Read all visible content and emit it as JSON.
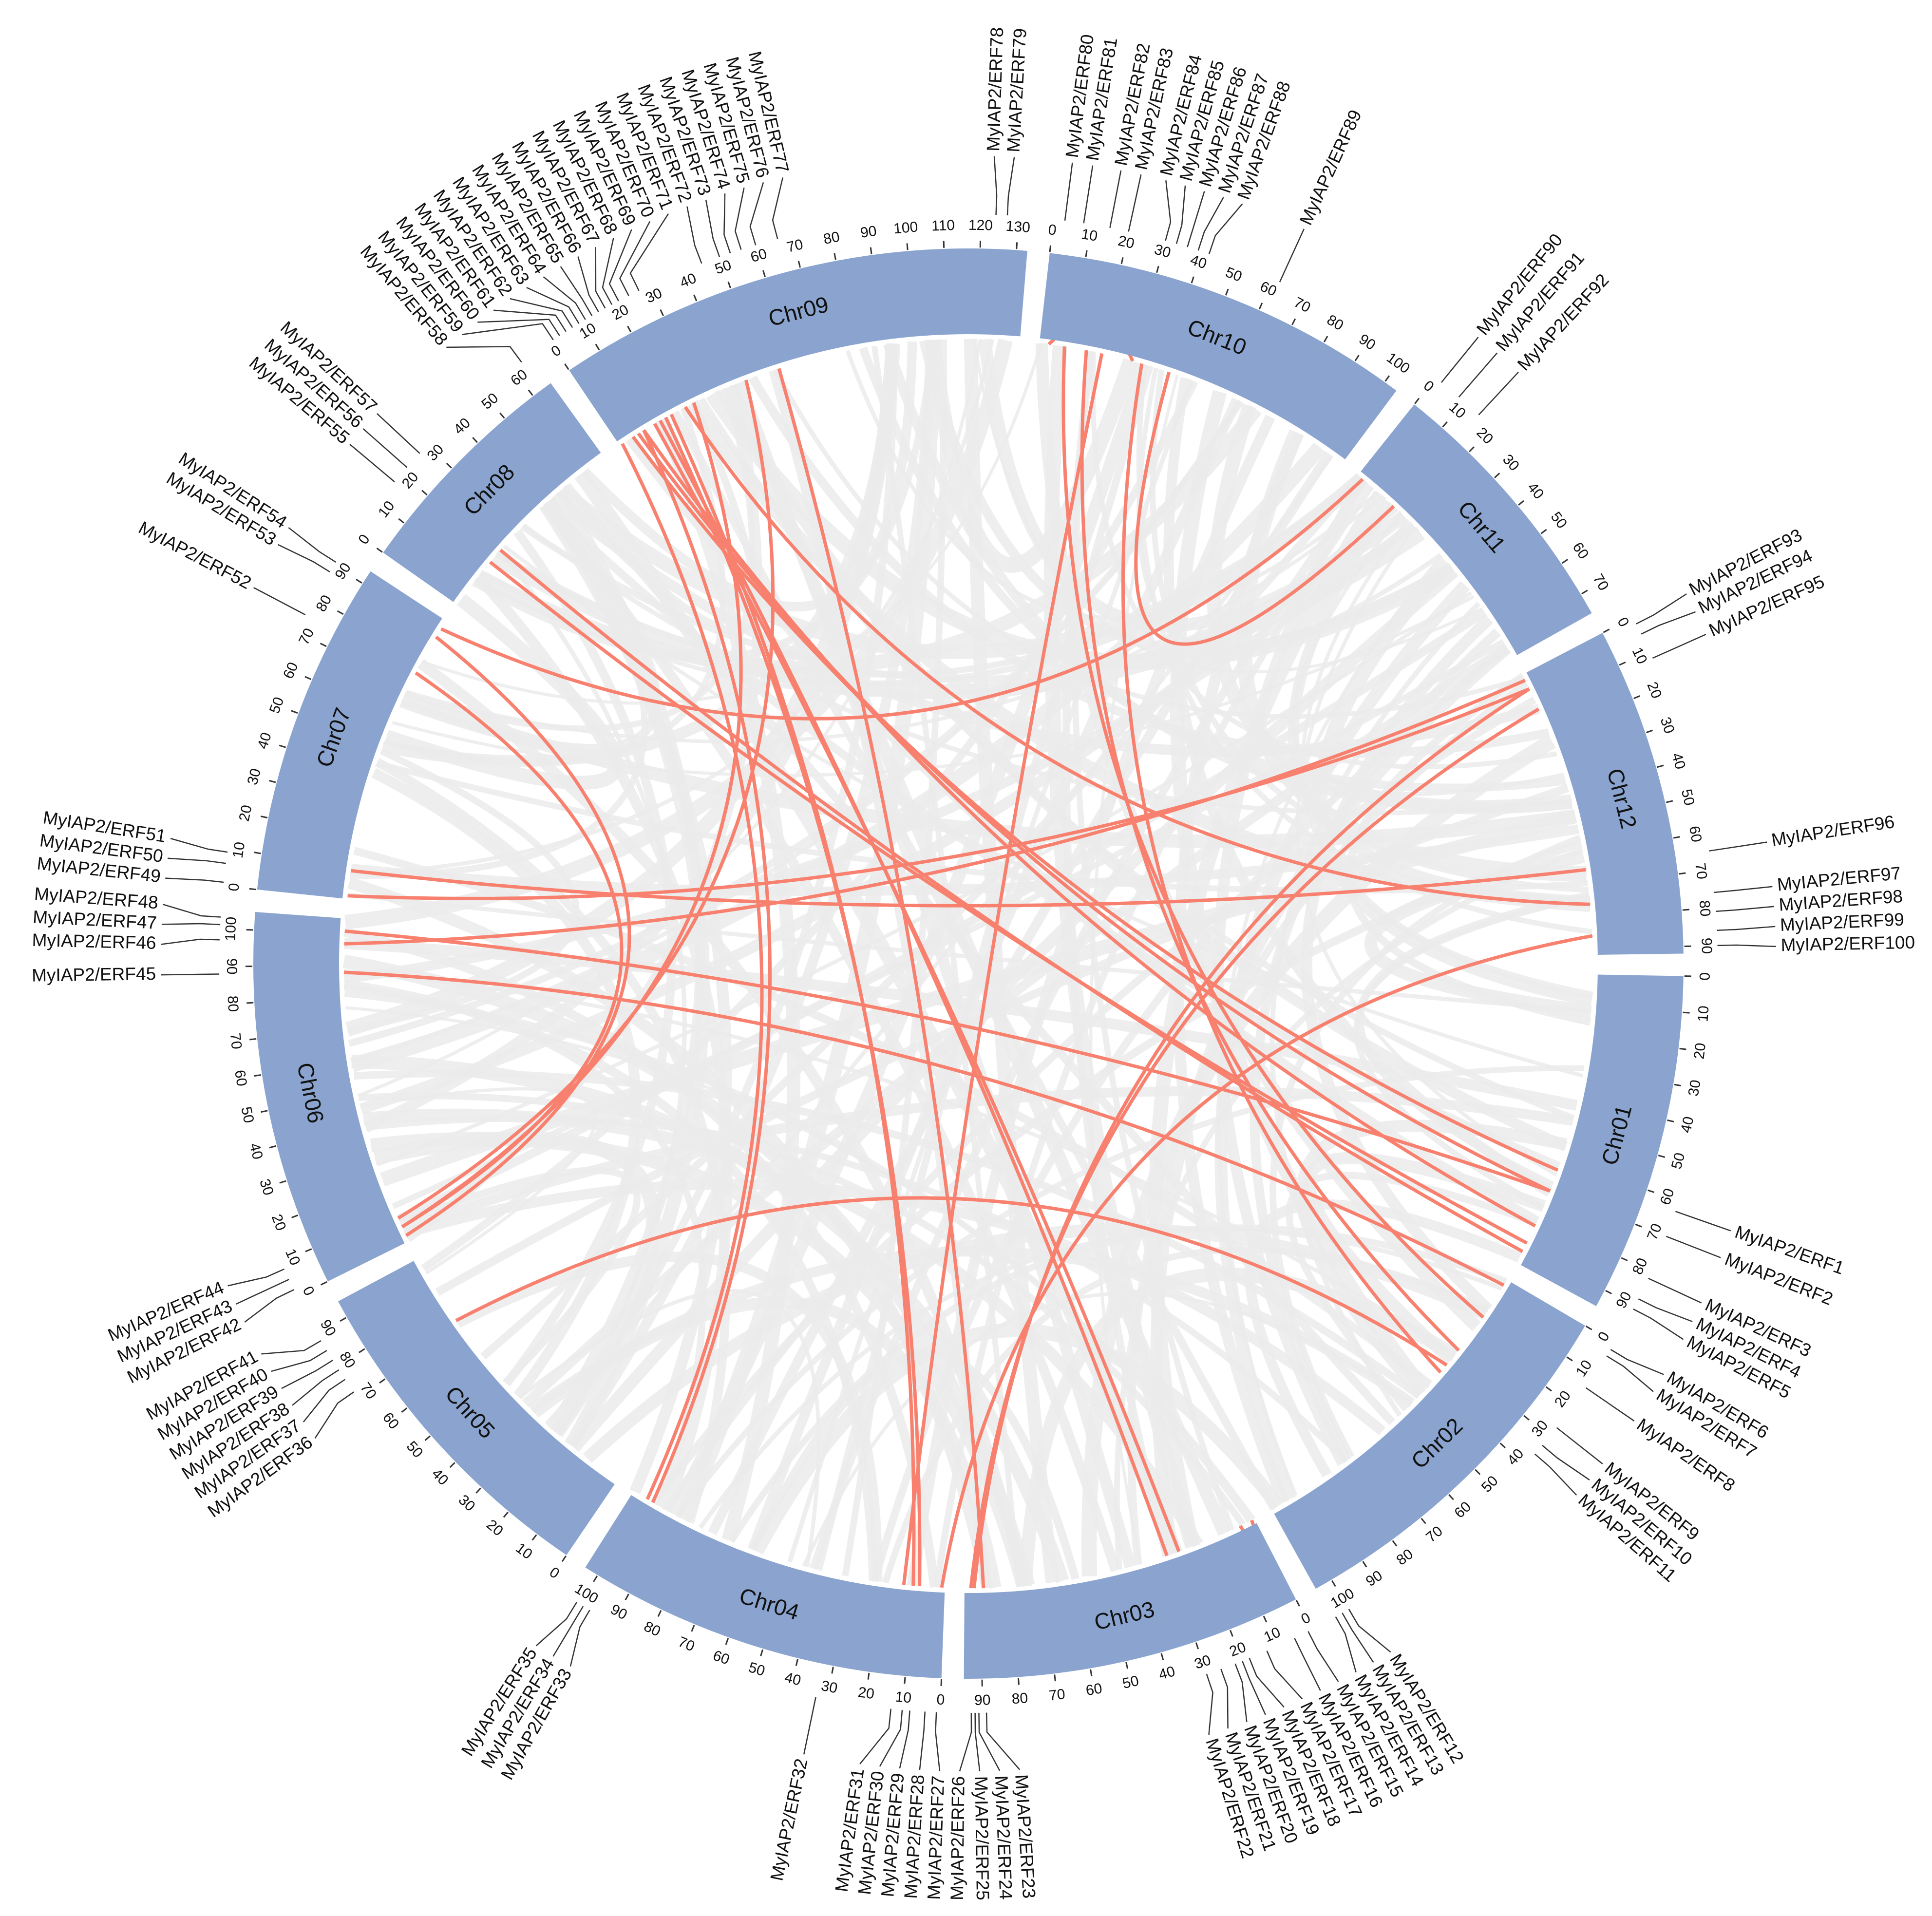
{
  "chart_data": {
    "type": "circos",
    "ideogram_color": "#8aa4cf",
    "link_color": "#f8806e",
    "background_link_color": "#ebebeb",
    "chromosomes": [
      {
        "name": "Chr01",
        "length": 95,
        "ticks": [
          0,
          10,
          20,
          30,
          40,
          50,
          60,
          70,
          80,
          90
        ],
        "genes": [
          {
            "name": "MyIAP2/ERF1",
            "position": 63
          },
          {
            "name": "MyIAP2/ERF2",
            "position": 70
          },
          {
            "name": "MyIAP2/ERF3",
            "position": 82
          },
          {
            "name": "MyIAP2/ERF4",
            "position": 88
          },
          {
            "name": "MyIAP2/ERF5",
            "position": 91
          }
        ]
      },
      {
        "name": "Chr02",
        "length": 105,
        "ticks": [
          0,
          10,
          20,
          30,
          40,
          50,
          60,
          70,
          80,
          90,
          100
        ],
        "genes": [
          {
            "name": "MyIAP2/ERF6",
            "position": 2
          },
          {
            "name": "MyIAP2/ERF7",
            "position": 4
          },
          {
            "name": "MyIAP2/ERF8",
            "position": 14
          },
          {
            "name": "MyIAP2/ERF9",
            "position": 27
          },
          {
            "name": "MyIAP2/ERF10",
            "position": 33
          },
          {
            "name": "MyIAP2/ERF11",
            "position": 36
          },
          {
            "name": "MyIAP2/ERF12",
            "position": 100
          },
          {
            "name": "MyIAP2/ERF13",
            "position": 102
          },
          {
            "name": "MyIAP2/ERF14",
            "position": 104
          }
        ]
      },
      {
        "name": "Chr03",
        "length": 95,
        "ticks": [
          0,
          10,
          20,
          30,
          40,
          50,
          60,
          70,
          80,
          90
        ],
        "genes": [
          {
            "name": "MyIAP2/ERF15",
            "position": 1
          },
          {
            "name": "MyIAP2/ERF16",
            "position": 5
          },
          {
            "name": "MyIAP2/ERF17",
            "position": 13
          },
          {
            "name": "MyIAP2/ERF18",
            "position": 18
          },
          {
            "name": "MyIAP2/ERF19",
            "position": 20
          },
          {
            "name": "MyIAP2/ERF20",
            "position": 22
          },
          {
            "name": "MyIAP2/ERF21",
            "position": 26
          },
          {
            "name": "MyIAP2/ERF22",
            "position": 30
          },
          {
            "name": "MyIAP2/ERF23",
            "position": 89
          },
          {
            "name": "MyIAP2/ERF24",
            "position": 91
          },
          {
            "name": "MyIAP2/ERF25",
            "position": 92
          },
          {
            "name": "MyIAP2/ERF26",
            "position": 93
          }
        ]
      },
      {
        "name": "Chr04",
        "length": 104,
        "ticks": [
          0,
          10,
          20,
          30,
          40,
          50,
          60,
          70,
          80,
          90,
          100
        ],
        "genes": [
          {
            "name": "MyIAP2/ERF27",
            "position": 1
          },
          {
            "name": "MyIAP2/ERF28",
            "position": 4
          },
          {
            "name": "MyIAP2/ERF29",
            "position": 8
          },
          {
            "name": "MyIAP2/ERF30",
            "position": 10
          },
          {
            "name": "MyIAP2/ERF31",
            "position": 13
          },
          {
            "name": "MyIAP2/ERF32",
            "position": 33
          },
          {
            "name": "MyIAP2/ERF33",
            "position": 97
          },
          {
            "name": "MyIAP2/ERF34",
            "position": 99
          },
          {
            "name": "MyIAP2/ERF35",
            "position": 101
          }
        ]
      },
      {
        "name": "Chr05",
        "length": 95,
        "ticks": [
          0,
          10,
          20,
          30,
          40,
          50,
          60,
          70,
          80,
          90
        ],
        "genes": [
          {
            "name": "MyIAP2/ERF36",
            "position": 72
          },
          {
            "name": "MyIAP2/ERF37",
            "position": 76
          },
          {
            "name": "MyIAP2/ERF38",
            "position": 79
          },
          {
            "name": "MyIAP2/ERF39",
            "position": 82
          },
          {
            "name": "MyIAP2/ERF40",
            "position": 85
          },
          {
            "name": "MyIAP2/ERF41",
            "position": 88
          }
        ]
      },
      {
        "name": "Chr06",
        "length": 105,
        "ticks": [
          0,
          10,
          20,
          30,
          40,
          50,
          60,
          70,
          80,
          90,
          100
        ],
        "genes": [
          {
            "name": "MyIAP2/ERF42",
            "position": 2
          },
          {
            "name": "MyIAP2/ERF43",
            "position": 5
          },
          {
            "name": "MyIAP2/ERF44",
            "position": 8
          },
          {
            "name": "MyIAP2/ERF45",
            "position": 88
          },
          {
            "name": "MyIAP2/ERF46",
            "position": 97
          },
          {
            "name": "MyIAP2/ERF47",
            "position": 101
          },
          {
            "name": "MyIAP2/ERF48",
            "position": 103
          }
        ]
      },
      {
        "name": "Chr07",
        "length": 94,
        "ticks": [
          0,
          10,
          20,
          30,
          40,
          50,
          60,
          70,
          80,
          90
        ],
        "genes": [
          {
            "name": "MyIAP2/ERF49",
            "position": 1
          },
          {
            "name": "MyIAP2/ERF50",
            "position": 6
          },
          {
            "name": "MyIAP2/ERF51",
            "position": 9
          },
          {
            "name": "MyIAP2/ERF52",
            "position": 75
          },
          {
            "name": "MyIAP2/ERF53",
            "position": 88
          },
          {
            "name": "MyIAP2/ERF54",
            "position": 91
          }
        ]
      },
      {
        "name": "Chr08",
        "length": 66,
        "ticks": [
          0,
          10,
          20,
          30,
          40,
          50,
          60
        ],
        "genes": [
          {
            "name": "MyIAP2/ERF55",
            "position": 17
          },
          {
            "name": "MyIAP2/ERF56",
            "position": 22
          },
          {
            "name": "MyIAP2/ERF57",
            "position": 27
          },
          {
            "name": "MyIAP2/ERF58",
            "position": 63
          }
        ]
      },
      {
        "name": "Chr09",
        "length": 133,
        "ticks": [
          0,
          10,
          20,
          30,
          40,
          50,
          60,
          70,
          80,
          90,
          100,
          110,
          120,
          130
        ],
        "genes": [
          {
            "name": "MyIAP2/ERF59",
            "position": 1
          },
          {
            "name": "MyIAP2/ERF60",
            "position": 3
          },
          {
            "name": "MyIAP2/ERF61",
            "position": 5
          },
          {
            "name": "MyIAP2/ERF62",
            "position": 7
          },
          {
            "name": "MyIAP2/ERF63",
            "position": 9
          },
          {
            "name": "MyIAP2/ERF64",
            "position": 11
          },
          {
            "name": "MyIAP2/ERF65",
            "position": 13
          },
          {
            "name": "MyIAP2/ERF66",
            "position": 15
          },
          {
            "name": "MyIAP2/ERF67",
            "position": 17
          },
          {
            "name": "MyIAP2/ERF68",
            "position": 19
          },
          {
            "name": "MyIAP2/ERF69",
            "position": 21
          },
          {
            "name": "MyIAP2/ERF70",
            "position": 24
          },
          {
            "name": "MyIAP2/ERF71",
            "position": 27
          },
          {
            "name": "MyIAP2/ERF72",
            "position": 45
          },
          {
            "name": "MyIAP2/ERF73",
            "position": 50
          },
          {
            "name": "MyIAP2/ERF74",
            "position": 53
          },
          {
            "name": "MyIAP2/ERF75",
            "position": 56
          },
          {
            "name": "MyIAP2/ERF76",
            "position": 60
          },
          {
            "name": "MyIAP2/ERF77",
            "position": 66
          },
          {
            "name": "MyIAP2/ERF78",
            "position": 124
          },
          {
            "name": "MyIAP2/ERF79",
            "position": 127
          }
        ]
      },
      {
        "name": "Chr10",
        "length": 104,
        "ticks": [
          0,
          10,
          20,
          30,
          40,
          50,
          60,
          70,
          80,
          90,
          100
        ],
        "genes": [
          {
            "name": "MyIAP2/ERF80",
            "position": 3
          },
          {
            "name": "MyIAP2/ERF81",
            "position": 8
          },
          {
            "name": "MyIAP2/ERF82",
            "position": 15
          },
          {
            "name": "MyIAP2/ERF83",
            "position": 20
          },
          {
            "name": "MyIAP2/ERF84",
            "position": 30
          },
          {
            "name": "MyIAP2/ERF85",
            "position": 33
          },
          {
            "name": "MyIAP2/ERF86",
            "position": 36
          },
          {
            "name": "MyIAP2/ERF87",
            "position": 39
          },
          {
            "name": "MyIAP2/ERF88",
            "position": 42
          },
          {
            "name": "MyIAP2/ERF89",
            "position": 62
          }
        ]
      },
      {
        "name": "Chr11",
        "length": 76,
        "ticks": [
          0,
          10,
          20,
          30,
          40,
          50,
          60,
          70
        ],
        "genes": [
          {
            "name": "MyIAP2/ERF90",
            "position": 2
          },
          {
            "name": "MyIAP2/ERF91",
            "position": 8
          },
          {
            "name": "MyIAP2/ERF92",
            "position": 15
          }
        ]
      },
      {
        "name": "Chr12",
        "length": 92,
        "ticks": [
          0,
          10,
          20,
          30,
          40,
          50,
          60,
          70,
          80,
          90
        ],
        "genes": [
          {
            "name": "MyIAP2/ERF93",
            "position": 2
          },
          {
            "name": "MyIAP2/ERF94",
            "position": 5
          },
          {
            "name": "MyIAP2/ERF95",
            "position": 12
          },
          {
            "name": "MyIAP2/ERF96",
            "position": 65
          },
          {
            "name": "MyIAP2/ERF97",
            "position": 76
          },
          {
            "name": "MyIAP2/ERF98",
            "position": 81
          },
          {
            "name": "MyIAP2/ERF99",
            "position": 86
          },
          {
            "name": "MyIAP2/ERF100",
            "position": 90
          }
        ]
      }
    ],
    "links": [
      [
        "MyIAP2/ERF97",
        "MyIAP2/ERF70"
      ],
      [
        "MyIAP2/ERF93",
        "MyIAP2/ERF46"
      ],
      [
        "MyIAP2/ERF94",
        "MyIAP2/ERF49"
      ],
      [
        "MyIAP2/ERF95",
        "MyIAP2/ERF26"
      ],
      [
        "MyIAP2/ERF94",
        "MyIAP2/ERF25"
      ],
      [
        "MyIAP2/ERF90",
        "MyIAP2/ERF54"
      ],
      [
        "MyIAP2/ERF80",
        "MyIAP2/ERF84"
      ],
      [
        "MyIAP2/ERF88",
        "MyIAP2/ERF92"
      ],
      [
        "MyIAP2/ERF61",
        "MyIAP2/ERF1"
      ],
      [
        "MyIAP2/ERF62",
        "MyIAP2/ERF2"
      ],
      [
        "MyIAP2/ERF63",
        "MyIAP2/ERF3"
      ],
      [
        "MyIAP2/ERF55",
        "MyIAP2/ERF4"
      ],
      [
        "MyIAP2/ERF56",
        "MyIAP2/ERF5"
      ],
      [
        "MyIAP2/ERF65",
        "MyIAP2/ERF21"
      ],
      [
        "MyIAP2/ERF66",
        "MyIAP2/ERF22"
      ],
      [
        "MyIAP2/ERF67",
        "MyIAP2/ERF29"
      ],
      [
        "MyIAP2/ERF68",
        "MyIAP2/ERF30"
      ],
      [
        "MyIAP2/ERF71",
        "MyIAP2/ERF43"
      ],
      [
        "MyIAP2/ERF72",
        "MyIAP2/ERF44"
      ],
      [
        "MyIAP2/ERF52",
        "MyIAP2/ERF43"
      ],
      [
        "MyIAP2/ERF53",
        "MyIAP2/ERF42"
      ],
      [
        "MyIAP2/ERF45",
        "MyIAP2/ERF6"
      ],
      [
        "MyIAP2/ERF51",
        "MyIAP2/ERF96"
      ],
      [
        "MyIAP2/ERF15",
        "MyIAP2/ERF16"
      ],
      [
        "MyIAP2/ERF10",
        "MyIAP2/ERF36"
      ],
      [
        "MyIAP2/ERF34",
        "MyIAP2/ERF59"
      ],
      [
        "MyIAP2/ERF33",
        "MyIAP2/ERF63"
      ],
      [
        "MyIAP2/ERF81",
        "MyIAP2/ERF8"
      ],
      [
        "MyIAP2/ERF82",
        "MyIAP2/ERF9"
      ],
      [
        "MyIAP2/ERF85",
        "MyIAP2/ERF11"
      ],
      [
        "MyIAP2/ERF75",
        "MyIAP2/ERF23"
      ],
      [
        "MyIAP2/ERF83",
        "MyIAP2/ERF31"
      ],
      [
        "MyIAP2/ERF99",
        "MyIAP2/ERF27"
      ],
      [
        "MyIAP2/ERF2",
        "MyIAP2/ERF47"
      ]
    ]
  }
}
